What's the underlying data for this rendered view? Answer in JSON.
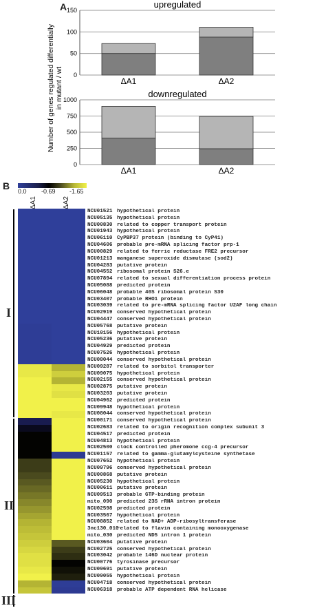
{
  "panel_a_label": "A",
  "panel_b_label": "B",
  "chart_data": [
    {
      "type": "bar",
      "stacked": true,
      "title": "upregulated",
      "ylabel": "Number of genes regulated differentially in mutant / wt",
      "categories": [
        "ΔA1",
        "ΔA2"
      ],
      "ylim": [
        0,
        150
      ],
      "yticks": [
        0,
        50,
        100,
        150
      ],
      "series": [
        {
          "values": [
            50,
            88
          ],
          "color": "#7f7f7f"
        },
        {
          "values": [
            23,
            23
          ],
          "color": "#b5b5b5"
        }
      ]
    },
    {
      "type": "bar",
      "stacked": true,
      "title": "downregulated",
      "categories": [
        "ΔA1",
        "ΔA2"
      ],
      "ylim": [
        0,
        1000
      ],
      "yticks": [
        0,
        250,
        500,
        750,
        1000
      ],
      "series": [
        {
          "values": [
            410,
            245
          ],
          "color": "#7f7f7f"
        },
        {
          "values": [
            490,
            500
          ],
          "color": "#b5b5b5"
        }
      ]
    },
    {
      "type": "heatmap",
      "color_scale": {
        "tick_labels": [
          "0.0",
          "-0.69",
          "-1.65"
        ]
      },
      "columns": [
        "ΔA1",
        "ΔA2"
      ],
      "clusters": [
        {
          "label": "I",
          "rows": [
            0,
            30
          ]
        },
        {
          "label": "II",
          "rows": [
            31,
            56
          ]
        },
        {
          "label": "III",
          "rows": [
            57,
            58
          ]
        }
      ],
      "rows": [
        {
          "id": "NCU01521",
          "desc": "hypothetical protein",
          "values": [
            0,
            0
          ]
        },
        {
          "id": "NCU05135",
          "desc": "hypothetical protein",
          "values": [
            0,
            0
          ]
        },
        {
          "id": "NCU00830",
          "desc": "related to copper transport protein",
          "values": [
            0,
            0
          ]
        },
        {
          "id": "NCU01943",
          "desc": "hypothetical protein",
          "values": [
            0,
            0
          ]
        },
        {
          "id": "NCU06110",
          "desc": "CyPBP37 protein (binding to CyP41)",
          "values": [
            0,
            0
          ]
        },
        {
          "id": "NCU04606",
          "desc": "probable pre-mRNA splicing factor prp-1",
          "values": [
            0,
            0
          ]
        },
        {
          "id": "NCU00829",
          "desc": "related to ferric reductase FRE2 precursor",
          "values": [
            0,
            0
          ]
        },
        {
          "id": "NCU01213",
          "desc": "manganese superoxide dismutase (sod2)",
          "values": [
            0,
            0
          ]
        },
        {
          "id": "NCU04283",
          "desc": "putative protein",
          "values": [
            0,
            0
          ]
        },
        {
          "id": "NCU04552",
          "desc": "ribosomal protein S26.e",
          "values": [
            0,
            0
          ]
        },
        {
          "id": "NCU07894",
          "desc": "related to sexual differentiation process protein",
          "values": [
            0,
            0
          ]
        },
        {
          "id": "NCU05088",
          "desc": "predicted protein",
          "values": [
            0,
            0
          ]
        },
        {
          "id": "NCU06048",
          "desc": "probable 40S ribosomal protein S30",
          "values": [
            0,
            0
          ]
        },
        {
          "id": "NCU03407",
          "desc": "probable RHO1 protein",
          "values": [
            0,
            0
          ]
        },
        {
          "id": "NCU03039",
          "desc": "related to pre-mRNA splicing factor U2AF long chain",
          "values": [
            0,
            0
          ]
        },
        {
          "id": "NCU02919",
          "desc": "conserved hypothetical protein",
          "values": [
            0,
            0
          ]
        },
        {
          "id": "NCU04447",
          "desc": "conserved hypothetical protein",
          "values": [
            0,
            0
          ]
        },
        {
          "id": "NCU05768",
          "desc": "putative protein",
          "values": [
            -0.05,
            0
          ]
        },
        {
          "id": "NCU10156",
          "desc": "hypothetical protein",
          "values": [
            -0.05,
            0
          ]
        },
        {
          "id": "NCU05236",
          "desc": "putative protein",
          "values": [
            -0.05,
            0
          ]
        },
        {
          "id": "NCU04929",
          "desc": "predicted protein",
          "values": [
            -0.05,
            0
          ]
        },
        {
          "id": "NCU07526",
          "desc": "hypothetical protein",
          "values": [
            -0.05,
            0
          ]
        },
        {
          "id": "NCU08044",
          "desc": "conserved hypothetical protein",
          "values": [
            -0.05,
            0
          ]
        },
        {
          "id": "NCU09287",
          "desc": "related to sorbitol transporter",
          "values": [
            -1.6,
            -1.3
          ]
        },
        {
          "id": "NCU09075",
          "desc": "hypothetical protein",
          "values": [
            -1.6,
            -1.45
          ]
        },
        {
          "id": "NCU02155",
          "desc": "conserved hypothetical protein",
          "values": [
            -1.65,
            -1.3
          ]
        },
        {
          "id": "NCU02875",
          "desc": "putative protein",
          "values": [
            -1.65,
            -1.6
          ]
        },
        {
          "id": "NCU03203",
          "desc": "putative protein",
          "values": [
            -1.65,
            -1.55
          ]
        },
        {
          "id": "NCU04962",
          "desc": "predicted protein",
          "values": [
            -1.65,
            -1.65
          ]
        },
        {
          "id": "NCU09948",
          "desc": "hypothetical protein",
          "values": [
            -1.65,
            -1.65
          ]
        },
        {
          "id": "NCU08044",
          "desc": "conserved hypothetical protein",
          "values": [
            -1.65,
            -1.6
          ]
        },
        {
          "id": "NCU00171",
          "desc": "conserved hypothetical protein",
          "values": [
            -0.45,
            -1.65
          ]
        },
        {
          "id": "NCU02683",
          "desc": "related to origin recognition complex subunit 3",
          "values": [
            -0.6,
            -1.65
          ]
        },
        {
          "id": "NCU04517",
          "desc": "predicted protein",
          "values": [
            -0.7,
            -1.65
          ]
        },
        {
          "id": "NCU04813",
          "desc": "hypothetical protein",
          "values": [
            -0.7,
            -1.65
          ]
        },
        {
          "id": "NCU02500",
          "desc": "clock controlled pheromone ccg-4 precursor",
          "values": [
            -0.7,
            -1.65
          ]
        },
        {
          "id": "NCU01157",
          "desc": "related to gamma-glutamylcysteine synthetase",
          "values": [
            -0.7,
            -0.1
          ]
        },
        {
          "id": "NCU07652",
          "desc": "hypothetical protein",
          "values": [
            -0.9,
            -1.65
          ]
        },
        {
          "id": "NCU09796",
          "desc": "conserved hypothetical protein",
          "values": [
            -0.9,
            -1.65
          ]
        },
        {
          "id": "NCU00868",
          "desc": "putative protein",
          "values": [
            -0.95,
            -1.65
          ]
        },
        {
          "id": "NCU05230",
          "desc": "hypothetical protein",
          "values": [
            -1.0,
            -1.65
          ]
        },
        {
          "id": "NCU00611",
          "desc": "putative protein",
          "values": [
            -1.05,
            -1.65
          ]
        },
        {
          "id": "NCU09513",
          "desc": "probable GTP-binding protein",
          "values": [
            -1.1,
            -1.65
          ]
        },
        {
          "id": "mito_090",
          "desc": "predicted 23S rRNA intron protein",
          "values": [
            -1.15,
            -1.65
          ]
        },
        {
          "id": "NCU02598",
          "desc": "predicted protein",
          "values": [
            -1.2,
            -1.65
          ]
        },
        {
          "id": "NCU03567",
          "desc": "hypothetical protein",
          "values": [
            -1.25,
            -1.65
          ]
        },
        {
          "id": "NCU08852",
          "desc": "related to NAD+ ADP-ribosyltransferase",
          "values": [
            -1.3,
            -1.65
          ]
        },
        {
          "id": "3nc130_010",
          "desc": "related to flavin containing monooxygenase",
          "values": [
            -1.35,
            -1.65
          ]
        },
        {
          "id": "mito_030",
          "desc": "predicted ND5 intron 1 protein",
          "values": [
            -1.4,
            -1.65
          ]
        },
        {
          "id": "NCU03604",
          "desc": "putative protein",
          "values": [
            -1.45,
            -1.0
          ]
        },
        {
          "id": "NCU02725",
          "desc": "conserved hypothetical protein",
          "values": [
            -1.5,
            -0.9
          ]
        },
        {
          "id": "NCU03042",
          "desc": "probable 146D nuclear protein",
          "values": [
            -1.55,
            -0.85
          ]
        },
        {
          "id": "NCU00776",
          "desc": "tyrosinase precursor",
          "values": [
            -1.55,
            -0.7
          ]
        },
        {
          "id": "NCU09691",
          "desc": "putative protein",
          "values": [
            -1.6,
            -0.75
          ]
        },
        {
          "id": "NCU09055",
          "desc": "hypothetical protein",
          "values": [
            -1.65,
            -0.8
          ]
        },
        {
          "id": "NCU04718",
          "desc": "conserved hypothetical protein",
          "values": [
            -1.3,
            -0.05
          ]
        },
        {
          "id": "NCU06318",
          "desc": "probable ATP dependent RNA helicase",
          "values": [
            -1.4,
            -0.1
          ]
        }
      ]
    }
  ]
}
